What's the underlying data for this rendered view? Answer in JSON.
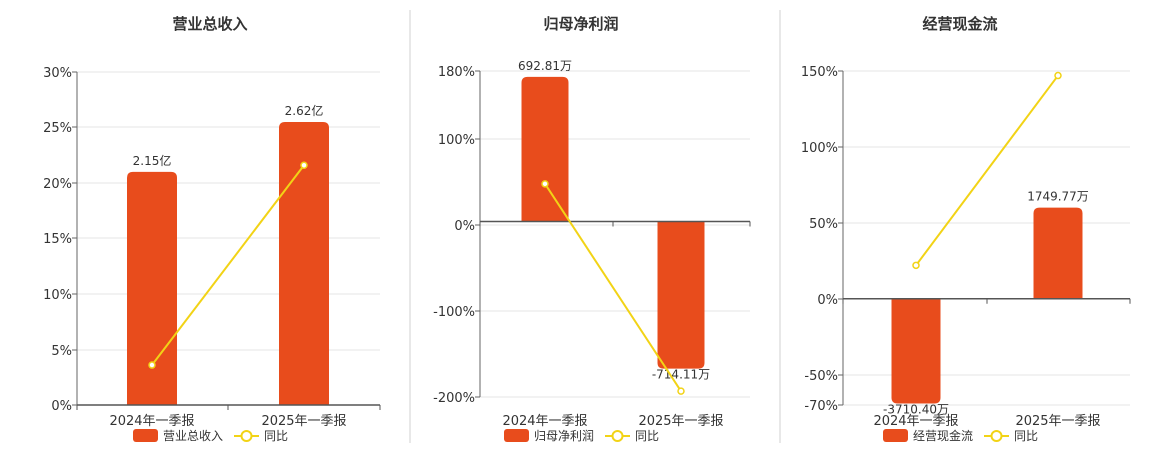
{
  "chart_data": [
    {
      "type": "bar",
      "title": "营业总收入",
      "categories": [
        "2024年一季报",
        "2025年一季报"
      ],
      "bar_labels": [
        "2.15亿",
        "2.62亿"
      ],
      "series": [
        {
          "name": "营业总收入",
          "values": [
            21.0,
            25.5
          ]
        },
        {
          "name": "同比",
          "values": [
            3.6,
            21.6
          ]
        }
      ],
      "yticks": [
        "30%",
        "25%",
        "20%",
        "15%",
        "10%",
        "5%",
        "0%"
      ],
      "ylim": [
        0,
        30
      ],
      "legend": [
        "营业总收入",
        "同比"
      ],
      "colors": {
        "bar": "#E84C1C",
        "line": "#F2D316"
      }
    },
    {
      "type": "bar",
      "title": "归母净利润",
      "categories": [
        "2024年一季报",
        "2025年一季报"
      ],
      "bar_labels": [
        "692.81万",
        "-714.11万"
      ],
      "series": [
        {
          "name": "归母净利润",
          "values": [
            173,
            -176
          ]
        },
        {
          "name": "同比",
          "values": [
            45,
            -203
          ]
        }
      ],
      "yticks": [
        "180%",
        "100%",
        "0%",
        "-100%",
        "-200%"
      ],
      "ylim": [
        -210,
        180
      ],
      "legend": [
        "归母净利润",
        "同比"
      ],
      "colors": {
        "bar": "#E84C1C",
        "line": "#F2D316"
      }
    },
    {
      "type": "bar",
      "title": "经营现金流",
      "categories": [
        "2024年一季报",
        "2025年一季报"
      ],
      "bar_labels": [
        "-3710.40万",
        "1749.77万"
      ],
      "series": [
        {
          "name": "经营现金流",
          "values": [
            -69,
            60
          ]
        },
        {
          "name": "同比",
          "values": [
            22,
            147
          ]
        }
      ],
      "yticks": [
        "150%",
        "100%",
        "50%",
        "0%",
        "-50%",
        "-70%"
      ],
      "ylim": [
        -70,
        150
      ],
      "legend": [
        "经营现金流",
        "同比"
      ],
      "colors": {
        "bar": "#E84C1C",
        "line": "#F2D316"
      }
    }
  ]
}
